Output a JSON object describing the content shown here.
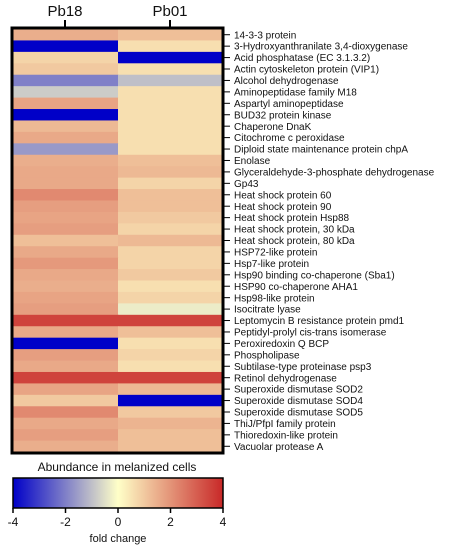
{
  "chart_data": {
    "type": "heatmap",
    "columns": [
      "Pb18",
      "Pb01"
    ],
    "rows": [
      "14-3-3 protein",
      "3-Hydroxyanthranilate 3,4-dioxygenase",
      "Acid phosphatase (EC 3.1.3.2)",
      "Actin cytoskeleton protein (VIP1)",
      "Alcohol dehydrogenase",
      "Aminopeptidase family M18",
      "Aspartyl aminopeptidase",
      "BUD32 protein kinase",
      "Chaperone DnaK",
      "Citochrome c peroxidase",
      "Diploid state maintenance protein chpA",
      "Enolase",
      "Glyceraldehyde-3-phosphate dehydrogenase",
      "Gp43",
      "Heat shock protein 60",
      "Heat shock protein 90",
      "Heat shock protein Hsp88",
      "Heat shock protein, 30 kDa",
      "Heat shock protein, 80 kDa",
      "HSP72-like protein",
      "Hsp7-like protein",
      "Hsp90 binding co-chaperone (Sba1)",
      "HSP90 co-chaperone AHA1",
      "Hsp98-like protein",
      "Isocitrate lyase",
      "Leptomycin B resistance protein pmd1",
      "Peptidyl-prolyl cis-trans isomerase",
      "Peroxiredoxin Q BCP",
      "Phospholipase",
      "Subtilase-type proteinase psp3",
      "Retinol dehydrogenase",
      "Superoxide dismutase SOD2",
      "Superoxide dismutase SOD4",
      "Superoxide dismutase SOD5",
      "ThiJ/PfpI family protein",
      "Thioredoxin-like protein",
      "Vacuolar protease A"
    ],
    "values": [
      [
        1.5,
        1.2
      ],
      [
        -4.0,
        0.6
      ],
      [
        0.8,
        -4.0
      ],
      [
        1.0,
        0.6
      ],
      [
        -2.0,
        -1.0
      ],
      [
        -0.8,
        0.6
      ],
      [
        1.7,
        0.6
      ],
      [
        -4.0,
        0.6
      ],
      [
        1.3,
        0.6
      ],
      [
        1.6,
        0.6
      ],
      [
        -1.6,
        0.6
      ],
      [
        1.5,
        1.2
      ],
      [
        1.6,
        1.3
      ],
      [
        1.6,
        0.8
      ],
      [
        2.2,
        1.2
      ],
      [
        1.8,
        1.2
      ],
      [
        1.7,
        1.0
      ],
      [
        1.8,
        0.8
      ],
      [
        1.2,
        1.3
      ],
      [
        1.6,
        0.8
      ],
      [
        1.9,
        0.8
      ],
      [
        1.6,
        1.0
      ],
      [
        1.5,
        0.6
      ],
      [
        1.7,
        0.8
      ],
      [
        1.8,
        -0.3
      ],
      [
        3.5,
        3.5
      ],
      [
        1.6,
        1.2
      ],
      [
        -4.0,
        0.6
      ],
      [
        1.8,
        0.8
      ],
      [
        1.6,
        0.6
      ],
      [
        3.5,
        3.5
      ],
      [
        1.7,
        1.3
      ],
      [
        1.0,
        -4.0
      ],
      [
        2.2,
        1.0
      ],
      [
        1.6,
        1.4
      ],
      [
        1.8,
        1.2
      ],
      [
        1.5,
        1.2
      ]
    ],
    "colorbar": {
      "title": "Abundance in melanized cells",
      "xlabel": "fold change",
      "range": [
        -4,
        4
      ],
      "ticks": [
        "-4",
        "-2",
        "0",
        "2",
        "4"
      ],
      "colors": [
        "#0000c8",
        "#ffffc8",
        "#c82828"
      ]
    }
  }
}
